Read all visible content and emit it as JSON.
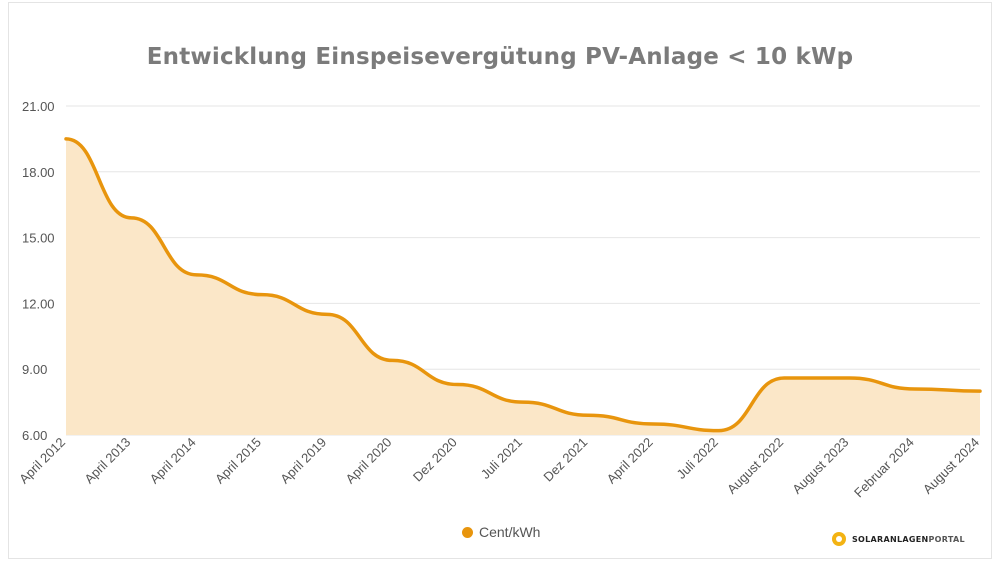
{
  "colors": {
    "line": "#e8950d",
    "fill": "#fbe7c8",
    "grid": "#e6e6e6",
    "title": "#7b7b7b"
  },
  "brand": {
    "name_part1": "SOLARANLAGEN",
    "name_part2": "PORTAL",
    "icon": "sun-icon"
  },
  "chart_data": {
    "type": "area",
    "title": "Entwicklung Einspeisevergütung PV-Anlage < 10 kWp",
    "xlabel": "",
    "ylabel": "",
    "ylim": [
      6,
      21
    ],
    "yticks": [
      "6.00",
      "9.00",
      "12.00",
      "15.00",
      "18.00",
      "21.00"
    ],
    "categories": [
      "April 2012",
      "April 2013",
      "April 2014",
      "April 2015",
      "April 2019",
      "April 2020",
      "Dez 2020",
      "Juli 2021",
      "Dez 2021",
      "April 2022",
      "Juli 2022",
      "August 2022",
      "August 2023",
      "Februar 2024",
      "August 2024"
    ],
    "series": [
      {
        "name": "Cent/kWh",
        "values": [
          19.5,
          15.9,
          13.3,
          12.4,
          11.5,
          9.4,
          8.3,
          7.5,
          6.9,
          6.5,
          6.2,
          8.6,
          8.6,
          8.1,
          8.0
        ]
      }
    ],
    "legend": "bottom-center",
    "grid": true
  }
}
